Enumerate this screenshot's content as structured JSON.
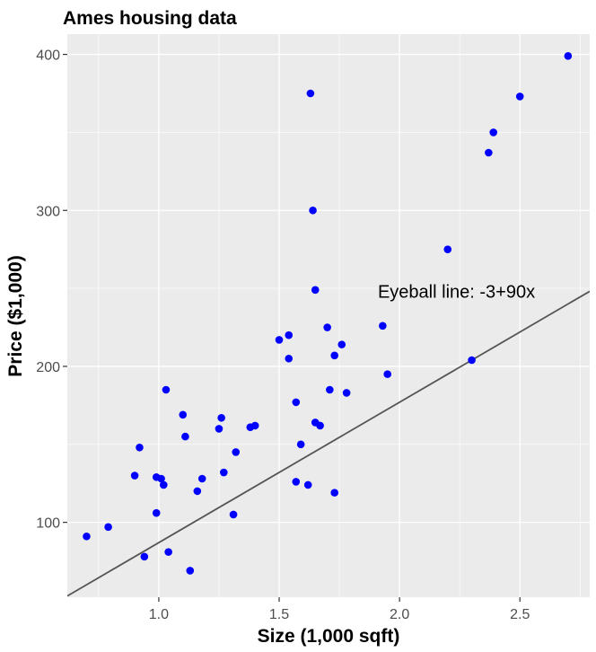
{
  "chart_data": {
    "type": "scatter",
    "title": "Ames housing data",
    "xlabel": "Size (1,000 sqft)",
    "ylabel": "Price ($1,000)",
    "xlim": [
      0.62,
      2.79
    ],
    "ylim": [
      52,
      413
    ],
    "x_ticks": [
      1.0,
      1.5,
      2.0,
      2.5
    ],
    "x_tick_labels": [
      "1.0",
      "1.5",
      "2.0",
      "2.5"
    ],
    "y_ticks": [
      100,
      200,
      300,
      400
    ],
    "y_tick_labels": [
      "100",
      "200",
      "300",
      "400"
    ],
    "grid": true,
    "background": "#ebebeb",
    "grid_color": "#ffffff",
    "point_color": "#0000ff",
    "line_color": "#555555",
    "points": [
      {
        "x": 0.7,
        "y": 91
      },
      {
        "x": 0.79,
        "y": 97
      },
      {
        "x": 0.9,
        "y": 130
      },
      {
        "x": 0.92,
        "y": 148
      },
      {
        "x": 0.94,
        "y": 78
      },
      {
        "x": 0.99,
        "y": 129
      },
      {
        "x": 0.99,
        "y": 106
      },
      {
        "x": 1.01,
        "y": 128
      },
      {
        "x": 1.02,
        "y": 124
      },
      {
        "x": 1.03,
        "y": 185
      },
      {
        "x": 1.04,
        "y": 81
      },
      {
        "x": 1.1,
        "y": 169
      },
      {
        "x": 1.11,
        "y": 155
      },
      {
        "x": 1.13,
        "y": 69
      },
      {
        "x": 1.16,
        "y": 120
      },
      {
        "x": 1.18,
        "y": 128
      },
      {
        "x": 1.25,
        "y": 160
      },
      {
        "x": 1.26,
        "y": 167
      },
      {
        "x": 1.27,
        "y": 132
      },
      {
        "x": 1.31,
        "y": 105
      },
      {
        "x": 1.32,
        "y": 145
      },
      {
        "x": 1.38,
        "y": 161
      },
      {
        "x": 1.4,
        "y": 162
      },
      {
        "x": 1.5,
        "y": 217
      },
      {
        "x": 1.54,
        "y": 220
      },
      {
        "x": 1.54,
        "y": 205
      },
      {
        "x": 1.57,
        "y": 126
      },
      {
        "x": 1.57,
        "y": 177
      },
      {
        "x": 1.59,
        "y": 150
      },
      {
        "x": 1.62,
        "y": 124
      },
      {
        "x": 1.63,
        "y": 375
      },
      {
        "x": 1.64,
        "y": 300
      },
      {
        "x": 1.65,
        "y": 249
      },
      {
        "x": 1.65,
        "y": 164
      },
      {
        "x": 1.67,
        "y": 162
      },
      {
        "x": 1.7,
        "y": 225
      },
      {
        "x": 1.71,
        "y": 185
      },
      {
        "x": 1.73,
        "y": 207
      },
      {
        "x": 1.73,
        "y": 119
      },
      {
        "x": 1.76,
        "y": 214
      },
      {
        "x": 1.78,
        "y": 183
      },
      {
        "x": 1.93,
        "y": 226
      },
      {
        "x": 1.95,
        "y": 195
      },
      {
        "x": 2.2,
        "y": 275
      },
      {
        "x": 2.3,
        "y": 204
      },
      {
        "x": 2.37,
        "y": 337
      },
      {
        "x": 2.39,
        "y": 350
      },
      {
        "x": 2.5,
        "y": 373
      },
      {
        "x": 2.7,
        "y": 399
      }
    ],
    "line": {
      "intercept": -3,
      "slope": 90
    },
    "annotation": {
      "text": "Eyeball line: -3+90x",
      "x": 1.91,
      "y": 248
    }
  }
}
